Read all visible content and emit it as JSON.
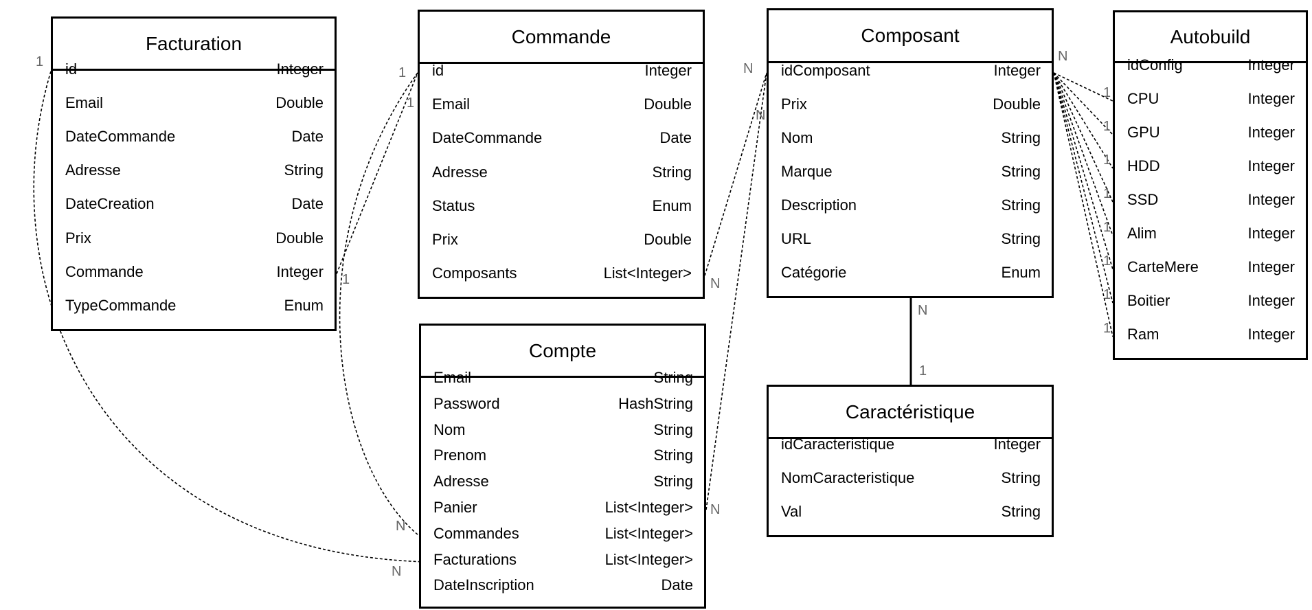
{
  "entities": [
    {
      "key": "facturation",
      "title": "Facturation",
      "fields": [
        {
          "name": "id",
          "type": "Integer"
        },
        {
          "name": "Email",
          "type": "Double"
        },
        {
          "name": "DateCommande",
          "type": "Date"
        },
        {
          "name": "Adresse",
          "type": "String"
        },
        {
          "name": "DateCreation",
          "type": "Date"
        },
        {
          "name": "Prix",
          "type": "Double"
        },
        {
          "name": "Commande",
          "type": "Integer"
        },
        {
          "name": "TypeCommande",
          "type": "Enum"
        }
      ]
    },
    {
      "key": "commande",
      "title": "Commande",
      "fields": [
        {
          "name": "id",
          "type": "Integer"
        },
        {
          "name": "Email",
          "type": "Double"
        },
        {
          "name": "DateCommande",
          "type": "Date"
        },
        {
          "name": "Adresse",
          "type": "String"
        },
        {
          "name": "Status",
          "type": "Enum"
        },
        {
          "name": "Prix",
          "type": "Double"
        },
        {
          "name": "Composants",
          "type": "List<Integer>"
        }
      ]
    },
    {
      "key": "compte",
      "title": "Compte",
      "fields": [
        {
          "name": "Email",
          "type": "String"
        },
        {
          "name": "Password",
          "type": "HashString"
        },
        {
          "name": "Nom",
          "type": "String"
        },
        {
          "name": "Prenom",
          "type": "String"
        },
        {
          "name": "Adresse",
          "type": "String"
        },
        {
          "name": "Panier",
          "type": "List<Integer>"
        },
        {
          "name": "Commandes",
          "type": "List<Integer>"
        },
        {
          "name": "Facturations",
          "type": "List<Integer>"
        },
        {
          "name": "DateInscription",
          "type": "Date"
        }
      ]
    },
    {
      "key": "composant",
      "title": "Composant",
      "fields": [
        {
          "name": "idComposant",
          "type": "Integer"
        },
        {
          "name": "Prix",
          "type": "Double"
        },
        {
          "name": "Nom",
          "type": "String"
        },
        {
          "name": "Marque",
          "type": "String"
        },
        {
          "name": "Description",
          "type": "String"
        },
        {
          "name": "URL",
          "type": "String"
        },
        {
          "name": "Catégorie",
          "type": "Enum"
        }
      ]
    },
    {
      "key": "caracteristique",
      "title": "Caractéristique",
      "fields": [
        {
          "name": "idCaracteristique",
          "type": "Integer"
        },
        {
          "name": "NomCaracteristique",
          "type": "String"
        },
        {
          "name": "Val",
          "type": "String"
        }
      ]
    },
    {
      "key": "autobuild",
      "title": "Autobuild",
      "fields": [
        {
          "name": "idConfig",
          "type": "Integer"
        },
        {
          "name": "CPU",
          "type": "Integer"
        },
        {
          "name": "GPU",
          "type": "Integer"
        },
        {
          "name": "HDD",
          "type": "Integer"
        },
        {
          "name": "SSD",
          "type": "Integer"
        },
        {
          "name": "Alim",
          "type": "Integer"
        },
        {
          "name": "CarteMere",
          "type": "Integer"
        },
        {
          "name": "Boitier",
          "type": "Integer"
        },
        {
          "name": "Ram",
          "type": "Integer"
        }
      ]
    }
  ],
  "relations": [
    {
      "key": "facturation-commande",
      "from": "facturation.Commande",
      "to": "commande.id",
      "from_card": "1",
      "to_card": "1",
      "style": "dashed"
    },
    {
      "key": "facturation-compte",
      "from": "facturation.id",
      "to": "compte.Facturations",
      "from_card": "1",
      "to_card": "N",
      "style": "dashed"
    },
    {
      "key": "commande-compte",
      "from": "commande.id",
      "to": "compte.Commandes",
      "from_card": "1",
      "to_card": "N",
      "style": "dashed"
    },
    {
      "key": "commande-composant",
      "from": "commande.Composants",
      "to": "composant.idComposant",
      "from_card": "N",
      "to_card": "N",
      "style": "dashed"
    },
    {
      "key": "compte-composant",
      "from": "compte.Panier",
      "to": "composant.idComposant",
      "from_card": "N",
      "to_card": "N",
      "style": "dashed"
    },
    {
      "key": "composant-caracteristique",
      "from": "composant",
      "to": "caracteristique",
      "from_card": "N",
      "to_card": "1",
      "style": "solid"
    },
    {
      "key": "composant-autobuild-cpu",
      "from": "composant.idComposant",
      "to": "autobuild.CPU",
      "from_card": "N",
      "to_card": "1",
      "style": "dashed"
    },
    {
      "key": "composant-autobuild-gpu",
      "from": "composant.idComposant",
      "to": "autobuild.GPU",
      "from_card": "N",
      "to_card": "1",
      "style": "dashed"
    },
    {
      "key": "composant-autobuild-hdd",
      "from": "composant.idComposant",
      "to": "autobuild.HDD",
      "from_card": "N",
      "to_card": "1",
      "style": "dashed"
    },
    {
      "key": "composant-autobuild-ssd",
      "from": "composant.idComposant",
      "to": "autobuild.SSD",
      "from_card": "N",
      "to_card": "1",
      "style": "dashed"
    },
    {
      "key": "composant-autobuild-alim",
      "from": "composant.idComposant",
      "to": "autobuild.Alim",
      "from_card": "N",
      "to_card": "1",
      "style": "dashed"
    },
    {
      "key": "composant-autobuild-cartemere",
      "from": "composant.idComposant",
      "to": "autobuild.CarteMere",
      "from_card": "N",
      "to_card": "1",
      "style": "dashed"
    },
    {
      "key": "composant-autobuild-boitier",
      "from": "composant.idComposant",
      "to": "autobuild.Boitier",
      "from_card": "N",
      "to_card": "1",
      "style": "dashed"
    },
    {
      "key": "composant-autobuild-ram",
      "from": "composant.idComposant",
      "to": "autobuild.Ram",
      "from_card": "N",
      "to_card": "1",
      "style": "dashed"
    }
  ]
}
